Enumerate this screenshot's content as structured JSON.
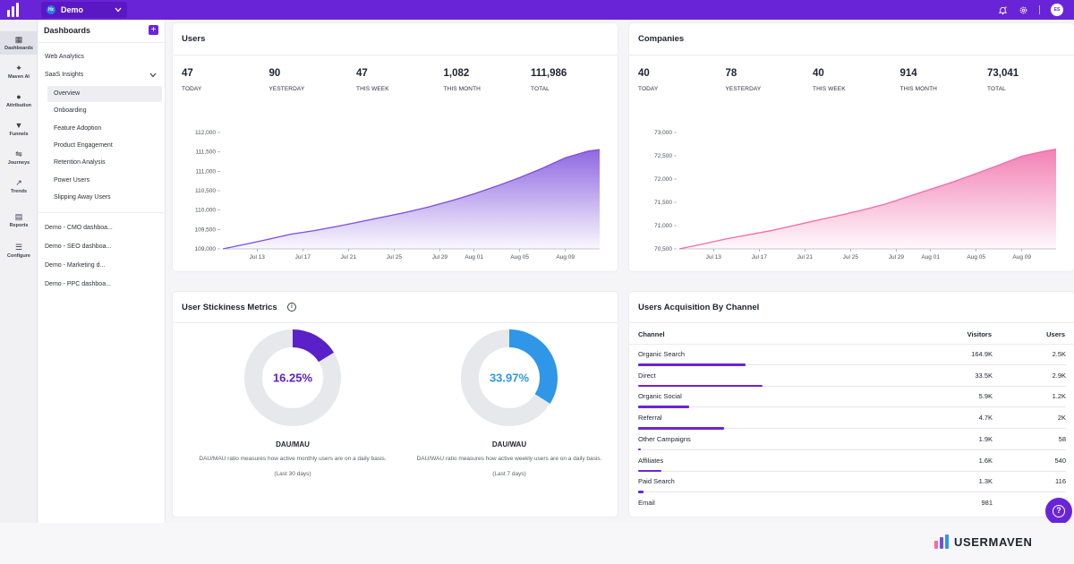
{
  "topbar": {
    "workspace": "Demo",
    "workspace_badge": "Hz",
    "avatar": "ES"
  },
  "rail": [
    {
      "label": "Dashboards",
      "icon": "grid-icon",
      "glyph": "▦"
    },
    {
      "label": "Maven AI",
      "icon": "sparkle-icon",
      "glyph": "✦"
    },
    {
      "label": "Attribution",
      "icon": "attribution-icon",
      "glyph": "●"
    },
    {
      "label": "Funnels",
      "icon": "funnel-icon",
      "glyph": "▼"
    },
    {
      "label": "Journeys",
      "icon": "journeys-icon",
      "glyph": "⇋"
    },
    {
      "label": "Trends",
      "icon": "trends-icon",
      "glyph": "↗"
    },
    {
      "label": "Reports",
      "icon": "report-icon",
      "glyph": "▤"
    },
    {
      "label": "Configure",
      "icon": "configure-icon",
      "glyph": "☰"
    }
  ],
  "sidebar": {
    "title": "Dashboards",
    "add": "+",
    "web_analytics": "Web Analytics",
    "saas_insights": "SaaS Insights",
    "sub_items": [
      "Overview",
      "Onboarding",
      "Feature Adoption",
      "Product Engagement",
      "Retention Analysis",
      "Power Users",
      "Slipping Away Users"
    ],
    "dashboards": [
      "Demo - CMO dashboa...",
      "Demo - SEO dashboa...",
      "Demo - Marketing d...",
      "Demo - PPC dashboa..."
    ]
  },
  "users": {
    "title": "Users",
    "stats": [
      {
        "value": "47",
        "label": "TODAY"
      },
      {
        "value": "90",
        "label": "YESTERDAY"
      },
      {
        "value": "47",
        "label": "THIS WEEK"
      },
      {
        "value": "1,082",
        "label": "THIS MONTH"
      },
      {
        "value": "111,986",
        "label": "TOTAL"
      }
    ]
  },
  "companies": {
    "title": "Companies",
    "stats": [
      {
        "value": "40",
        "label": "TODAY"
      },
      {
        "value": "78",
        "label": "YESTERDAY"
      },
      {
        "value": "40",
        "label": "THIS WEEK"
      },
      {
        "value": "914",
        "label": "THIS MONTH"
      },
      {
        "value": "73,041",
        "label": "TOTAL"
      }
    ]
  },
  "chart_data": [
    {
      "type": "area",
      "color": "#7c4ddc",
      "yticks": [
        "112,000",
        "111,500",
        "111,000",
        "110,500",
        "110,000",
        "109,500",
        "109,000"
      ],
      "ytick_values": [
        112000,
        111500,
        111000,
        110500,
        110000,
        109500,
        109000
      ],
      "ylim": [
        109000,
        112000
      ],
      "xticks": [
        "Jul 13",
        "Jul 17",
        "Jul 21",
        "Jul 25",
        "Jul 29",
        "Aug 01",
        "Aug 05",
        "Aug 09"
      ],
      "xtick_positions": [
        3,
        7,
        11,
        15,
        19,
        22,
        26,
        30
      ],
      "x": [
        0,
        2,
        4,
        6,
        8,
        10,
        12,
        14,
        16,
        18,
        20,
        22,
        24,
        26,
        28,
        30,
        32,
        33
      ],
      "values": [
        109000,
        109120,
        109250,
        109380,
        109470,
        109580,
        109700,
        109820,
        109940,
        110080,
        110240,
        110420,
        110620,
        110840,
        111080,
        111350,
        111520,
        111560
      ]
    },
    {
      "type": "area",
      "color": "#f06aa8",
      "yticks": [
        "73,000",
        "72,500",
        "72,000",
        "71,500",
        "71,000",
        "70,500"
      ],
      "ytick_values": [
        73000,
        72500,
        72000,
        71500,
        71000,
        70500
      ],
      "ylim": [
        70500,
        73000
      ],
      "xticks": [
        "Jul 13",
        "Jul 17",
        "Jul 21",
        "Jul 25",
        "Jul 29",
        "Aug 01",
        "Aug 05",
        "Aug 09"
      ],
      "xtick_positions": [
        3,
        7,
        11,
        15,
        19,
        22,
        26,
        30
      ],
      "x": [
        0,
        2,
        4,
        6,
        8,
        10,
        12,
        14,
        16,
        18,
        20,
        22,
        24,
        26,
        28,
        30,
        32,
        33
      ],
      "values": [
        70500,
        70600,
        70710,
        70800,
        70890,
        71000,
        71110,
        71220,
        71330,
        71460,
        71620,
        71780,
        71940,
        72120,
        72300,
        72490,
        72600,
        72640
      ]
    }
  ],
  "stickiness": {
    "title": "User Stickiness Metrics",
    "info": "i",
    "donuts": [
      {
        "value_label": "16.25%",
        "fraction": 0.1625,
        "color": "#5b21c8",
        "name": "DAU/MAU",
        "desc": "DAU/MAU ratio measures how active monthly users are on a daily basis.",
        "period": "(Last 30 days)"
      },
      {
        "value_label": "33.97%",
        "fraction": 0.3397,
        "color": "#2f96e8",
        "name": "DAU/WAU",
        "desc": "DAU/WAU ratio measures how active weekly users are on a daily basis.",
        "period": "(Last 7 days)"
      }
    ]
  },
  "acquisition": {
    "title": "Users Acquisition By Channel",
    "columns": {
      "channel": "Channel",
      "visitors": "Visitors",
      "users": "Users"
    },
    "rows": [
      {
        "channel": "Organic Search",
        "visitors": "164.9K",
        "users": "2.5K",
        "share": 0.25
      },
      {
        "channel": "Direct",
        "visitors": "33.5K",
        "users": "2.9K",
        "share": 0.29
      },
      {
        "channel": "Organic Social",
        "visitors": "5.9K",
        "users": "1.2K",
        "share": 0.12
      },
      {
        "channel": "Referral",
        "visitors": "4.7K",
        "users": "2K",
        "share": 0.2
      },
      {
        "channel": "Other Campaigns",
        "visitors": "1.9K",
        "users": "58",
        "share": 0.006
      },
      {
        "channel": "Affiliates",
        "visitors": "1.6K",
        "users": "540",
        "share": 0.054
      },
      {
        "channel": "Paid Search",
        "visitors": "1.3K",
        "users": "116",
        "share": 0.012
      },
      {
        "channel": "Email",
        "visitors": "981",
        "users": "",
        "share": 0
      }
    ]
  },
  "brand": "USERMAVEN",
  "help": "?"
}
